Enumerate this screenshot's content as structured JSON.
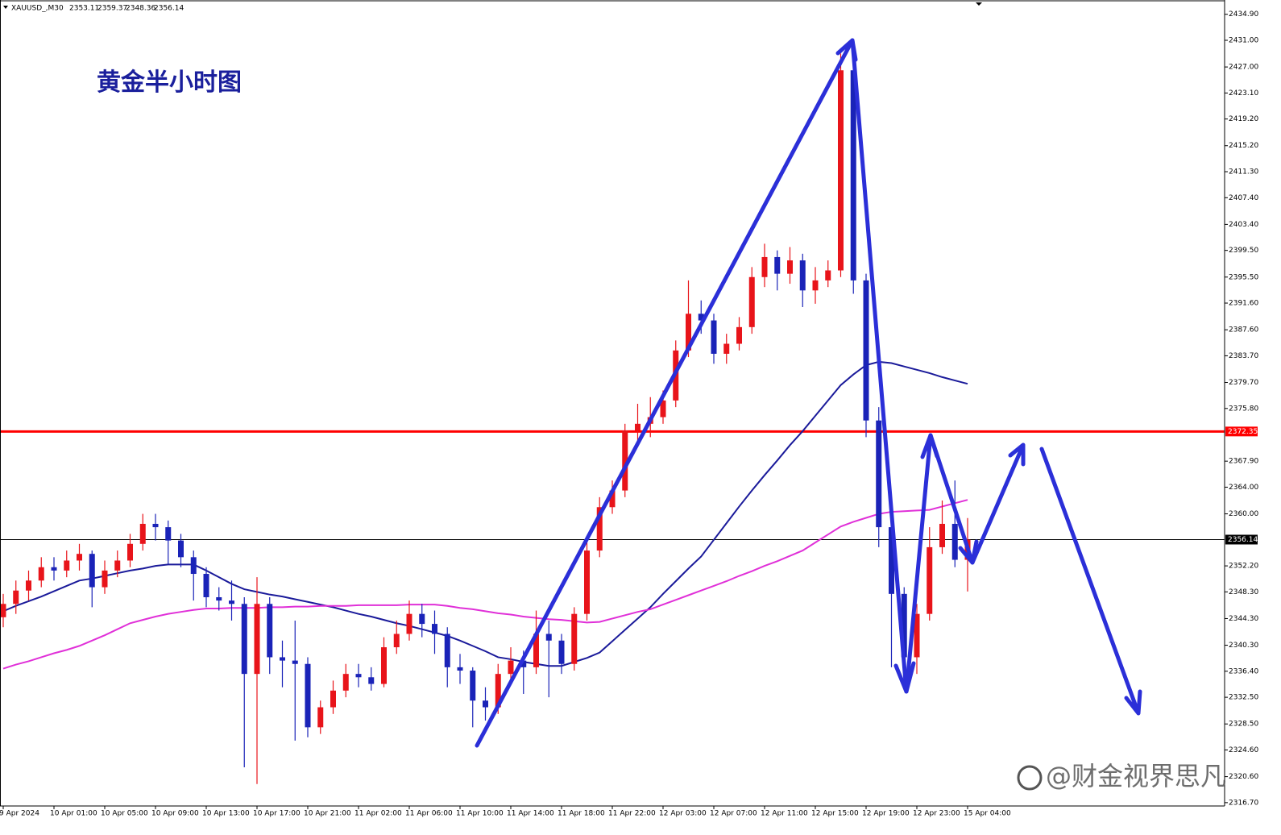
{
  "chart_data": {
    "type": "candlestick",
    "symbol": "XAUUSD_,M30",
    "title": "黄金半小时图",
    "watermark": "@财金视界思凡",
    "up_color": "#e8141a",
    "down_color": "#1a23b8",
    "categories": [
      "9 Apr 2024",
      null,
      null,
      null,
      "10 Apr 01:00",
      null,
      null,
      null,
      "10 Apr 05:00",
      null,
      null,
      null,
      "10 Apr 09:00",
      null,
      null,
      null,
      "10 Apr 13:00",
      null,
      null,
      null,
      "10 Apr 17:00",
      null,
      null,
      null,
      "10 Apr 21:00",
      null,
      null,
      null,
      "11 Apr 02:00",
      null,
      null,
      null,
      "11 Apr 06:00",
      null,
      null,
      null,
      "11 Apr 10:00",
      null,
      null,
      null,
      "11 Apr 14:00",
      null,
      null,
      null,
      "11 Apr 18:00",
      null,
      null,
      null,
      "11 Apr 22:00",
      null,
      null,
      null,
      "12 Apr 03:00",
      null,
      null,
      null,
      "12 Apr 07:00",
      null,
      null,
      null,
      "12 Apr 11:00",
      null,
      null,
      null,
      "12 Apr 15:00",
      null,
      null,
      null,
      "12 Apr 19:00",
      null,
      null,
      null,
      "12 Apr 23:00",
      null,
      null,
      null,
      "15 Apr 04:00"
    ],
    "open": [
      2344.5,
      2346.5,
      2348.5,
      2350.0,
      2352.0,
      2351.5,
      2353.0,
      2354.0,
      2349.0,
      2351.5,
      2353.0,
      2355.5,
      2358.5,
      2358.0,
      2356.0,
      2353.5,
      2351.0,
      2347.5,
      2347.0,
      2346.5,
      2336.0,
      2346.5,
      2338.5,
      2338.0,
      2337.5,
      2328.0,
      2331.0,
      2333.5,
      2336.0,
      2335.5,
      2334.5,
      2340.0,
      2342.0,
      2345.0,
      2343.5,
      2342.0,
      2337.0,
      2336.5,
      2332.0,
      2331.0,
      2336.0,
      2338.0,
      2337.0,
      2342.0,
      2341.0,
      2337.5,
      2345.0,
      2354.5,
      2361.0,
      2363.5,
      2372.5,
      2373.5,
      2374.5,
      2377.0,
      2384.5,
      2390.0,
      2389.0,
      2384.0,
      2385.5,
      2388.0,
      2395.5,
      2398.5,
      2396.0,
      2398.0,
      2393.5,
      2395.0,
      2396.5,
      2426.5,
      2395.0,
      2374.0,
      2358.0,
      2348.0,
      2338.5,
      2345.0,
      2355.0,
      2358.5,
      2353.11
    ],
    "high": [
      2348,
      2350,
      2351.5,
      2353.5,
      2353.5,
      2354.5,
      2355.5,
      2354.5,
      2353,
      2354.5,
      2357,
      2360,
      2360,
      2359,
      2357,
      2354.5,
      2352,
      2349,
      2350,
      2347.5,
      2350.5,
      2347.5,
      2341,
      2344,
      2338.5,
      2332,
      2335,
      2337.5,
      2337.5,
      2337,
      2341.5,
      2344,
      2347,
      2346.5,
      2345.5,
      2343,
      2339,
      2337,
      2334,
      2337.5,
      2340,
      2339.5,
      2345.5,
      2344,
      2342,
      2346,
      2356,
      2362.5,
      2365,
      2373.5,
      2376.5,
      2377.5,
      2378.5,
      2386,
      2395,
      2392,
      2390,
      2387,
      2389.5,
      2397,
      2400.5,
      2399.5,
      2400,
      2399,
      2397,
      2398,
      2429,
      2427.5,
      2396,
      2376,
      2360,
      2349,
      2346.5,
      2358,
      2362,
      2365,
      2359.37
    ],
    "low": [
      2343,
      2345,
      2347,
      2349,
      2350,
      2350.5,
      2351.5,
      2346,
      2348,
      2350.5,
      2352,
      2354.5,
      2356,
      2352.5,
      2352,
      2347,
      2346,
      2345.5,
      2344,
      2322,
      2319.5,
      2336,
      2334,
      2326,
      2326.5,
      2327,
      2330,
      2332.5,
      2334,
      2333.5,
      2334,
      2339,
      2341,
      2341.5,
      2339,
      2334,
      2334.5,
      2328,
      2329,
      2330,
      2334.5,
      2333,
      2336,
      2332.5,
      2336,
      2336.5,
      2344,
      2353.5,
      2360,
      2362.5,
      2370,
      2371.5,
      2373.5,
      2376,
      2383.5,
      2387,
      2382.5,
      2382.5,
      2384.5,
      2387,
      2394,
      2393.5,
      2394.5,
      2391,
      2391.5,
      2394,
      2395.5,
      2393,
      2371.5,
      2355,
      2337,
      2334.5,
      2336,
      2344,
      2354,
      2352,
      2348.36
    ],
    "close": [
      2346.5,
      2348.5,
      2350.0,
      2352.0,
      2351.5,
      2353.0,
      2354.0,
      2349.0,
      2351.5,
      2353.0,
      2355.5,
      2358.5,
      2358.0,
      2356.0,
      2353.5,
      2351.0,
      2347.5,
      2347.0,
      2346.5,
      2336.0,
      2346.5,
      2338.5,
      2338.0,
      2337.5,
      2328.0,
      2331.0,
      2333.5,
      2336.0,
      2335.5,
      2334.5,
      2340.0,
      2342.0,
      2345.0,
      2343.5,
      2342.0,
      2337.0,
      2336.5,
      2332.0,
      2331.0,
      2336.0,
      2338.0,
      2337.0,
      2342.0,
      2341.0,
      2337.5,
      2345.0,
      2354.5,
      2361.0,
      2363.5,
      2372.5,
      2373.5,
      2374.5,
      2377.0,
      2384.5,
      2390.0,
      2389.0,
      2384.0,
      2385.5,
      2388.0,
      2395.5,
      2398.5,
      2396.0,
      2398.0,
      2393.5,
      2395.0,
      2396.5,
      2426.5,
      2395.0,
      2374.0,
      2358.0,
      2348.0,
      2338.5,
      2345.0,
      2355.0,
      2358.5,
      2353.11,
      2356.14
    ],
    "series": [
      {
        "color": "#1a1a9a",
        "values": [
          2345.4,
          2346.2,
          2346.9,
          2347.6,
          2348.4,
          2349.2,
          2350.0,
          2350.3,
          2350.7,
          2351.1,
          2351.5,
          2351.8,
          2352.2,
          2352.4,
          2352.4,
          2352.4,
          2351.5,
          2350.5,
          2349.5,
          2348.7,
          2348.3,
          2347.9,
          2347.6,
          2347.2,
          2346.8,
          2346.4,
          2346.0,
          2345.5,
          2345.0,
          2344.6,
          2344.1,
          2343.6,
          2343.2,
          2342.7,
          2342.2,
          2341.7,
          2341.0,
          2340.2,
          2339.4,
          2338.5,
          2338.2,
          2337.8,
          2337.5,
          2337.2,
          2337.2,
          2337.8,
          2338.4,
          2339.2,
          2340.9,
          2342.6,
          2344.3,
          2346.0,
          2348.0,
          2349.9,
          2351.8,
          2353.6,
          2356.1,
          2358.6,
          2361.1,
          2363.5,
          2365.8,
          2368.0,
          2370.3,
          2372.4,
          2374.7,
          2377.0,
          2379.3,
          2380.9,
          2382.3,
          2382.8,
          2382.6,
          2382.1,
          2381.6,
          2381.1,
          2380.5,
          2380.0,
          2379.5
        ]
      },
      {
        "color": "#e030d8",
        "values": [
          2336.8,
          2337.4,
          2337.9,
          2338.5,
          2339.1,
          2339.6,
          2340.2,
          2341.0,
          2341.8,
          2342.7,
          2343.6,
          2344.1,
          2344.6,
          2345.0,
          2345.3,
          2345.6,
          2345.8,
          2345.8,
          2345.9,
          2345.9,
          2345.9,
          2346.0,
          2346.0,
          2346.1,
          2346.1,
          2346.2,
          2346.2,
          2346.2,
          2346.3,
          2346.3,
          2346.3,
          2346.3,
          2346.4,
          2346.4,
          2346.4,
          2346.2,
          2345.9,
          2345.7,
          2345.4,
          2345.1,
          2344.9,
          2344.6,
          2344.4,
          2344.2,
          2344.1,
          2343.9,
          2343.7,
          2343.8,
          2344.3,
          2344.8,
          2345.3,
          2345.7,
          2346.4,
          2347.1,
          2347.8,
          2348.5,
          2349.2,
          2349.9,
          2350.7,
          2351.4,
          2352.2,
          2352.9,
          2353.7,
          2354.5,
          2355.7,
          2356.9,
          2358.1,
          2358.8,
          2359.4,
          2360.0,
          2360.3,
          2360.4,
          2360.5,
          2360.6,
          2361.1,
          2361.6,
          2362.1
        ]
      }
    ],
    "levels": [
      {
        "value": 2372.35,
        "color": "#ff0000"
      },
      {
        "value": 2356.14,
        "color": "#000000"
      }
    ],
    "ylim": [
      2316.2,
      2436.8
    ],
    "yticks": [
      {
        "value": 2434.9,
        "label": "2434.90"
      },
      {
        "value": 2431,
        "label": "2431.00"
      },
      {
        "value": 2427,
        "label": "2427.00"
      },
      {
        "value": 2423.1,
        "label": "2423.10"
      },
      {
        "value": 2419.2,
        "label": "2419.20"
      },
      {
        "value": 2415.2,
        "label": "2415.20"
      },
      {
        "value": 2411.3,
        "label": "2411.30"
      },
      {
        "value": 2407.4,
        "label": "2407.40"
      },
      {
        "value": 2403.4,
        "label": "2403.40"
      },
      {
        "value": 2399.5,
        "label": "2399.50"
      },
      {
        "value": 2395.5,
        "label": "2395.50"
      },
      {
        "value": 2391.6,
        "label": "2391.60"
      },
      {
        "value": 2387.6,
        "label": "2387.60"
      },
      {
        "value": 2383.7,
        "label": "2383.70"
      },
      {
        "value": 2379.7,
        "label": "2379.70"
      },
      {
        "value": 2375.8,
        "label": "2375.80"
      },
      {
        "value": 2367.9,
        "label": "2367.90"
      },
      {
        "value": 2364,
        "label": "2364.00"
      },
      {
        "value": 2360,
        "label": "2360.00"
      },
      {
        "value": 2352.2,
        "label": "2352.20"
      },
      {
        "value": 2348.3,
        "label": "2348.30"
      },
      {
        "value": 2344.3,
        "label": "2344.30"
      },
      {
        "value": 2340.3,
        "label": "2340.30"
      },
      {
        "value": 2336.4,
        "label": "2336.40"
      },
      {
        "value": 2332.5,
        "label": "2332.50"
      },
      {
        "value": 2328.5,
        "label": "2328.50"
      },
      {
        "value": 2324.6,
        "label": "2324.60"
      },
      {
        "value": 2320.6,
        "label": "2320.60"
      },
      {
        "value": 2316.7,
        "label": "2316.70"
      }
    ]
  }
}
